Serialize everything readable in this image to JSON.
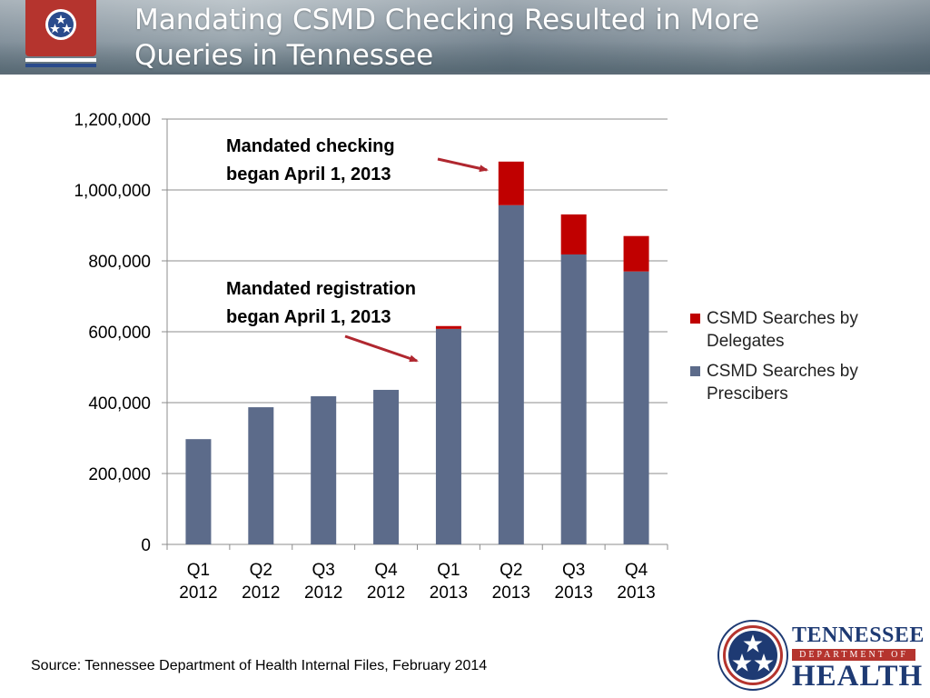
{
  "slide": {
    "title_line1": "Mandating CSMD Checking Resulted in More",
    "title_line2": "Queries in Tennessee",
    "source": "Source: Tennessee Department of Health Internal Files, February 2014"
  },
  "logo": {
    "line1": "TENNESSEE",
    "line2": "DEPARTMENT OF",
    "line3": "HEALTH"
  },
  "annotations": {
    "checking_line1": "Mandated checking",
    "checking_line2": "began April 1, 2013",
    "registration_line1": "Mandated registration",
    "registration_line2": "began April 1, 2013"
  },
  "colors": {
    "prescribers": "#5c6b8a",
    "delegates": "#c00000",
    "arrow": "#b0272f",
    "header_accent": "#b5342e",
    "brand_blue": "#1e3a73"
  },
  "chart_data": {
    "type": "bar",
    "stacked": true,
    "categories": [
      [
        "Q1",
        "2012"
      ],
      [
        "Q2",
        "2012"
      ],
      [
        "Q3",
        "2012"
      ],
      [
        "Q4",
        "2012"
      ],
      [
        "Q1",
        "2013"
      ],
      [
        "Q2",
        "2013"
      ],
      [
        "Q3",
        "2013"
      ],
      [
        "Q4",
        "2013"
      ]
    ],
    "series": [
      {
        "name": "CSMD Searches by Prescibers",
        "color": "#5c6b8a",
        "values": [
          297000,
          387000,
          418000,
          436000,
          608000,
          957000,
          818000,
          770000
        ]
      },
      {
        "name": "CSMD Searches by Delegates",
        "color": "#c00000",
        "values": [
          0,
          0,
          0,
          0,
          8000,
          123000,
          113000,
          100000
        ]
      }
    ],
    "legend_order": [
      1,
      0
    ],
    "legend_labels": [
      [
        "CSMD Searches by",
        "Delegates"
      ],
      [
        "CSMD Searches by",
        "Prescibers"
      ]
    ],
    "ylim": [
      0,
      1200000
    ],
    "yticks": [
      0,
      200000,
      400000,
      600000,
      800000,
      1000000,
      1200000
    ],
    "ytick_labels": [
      "0",
      "200,000",
      "400,000",
      "600,000",
      "800,000",
      "1,000,000",
      "1,200,000"
    ],
    "grid": true,
    "legend_position": "right",
    "title": "",
    "xlabel": "",
    "ylabel": ""
  }
}
